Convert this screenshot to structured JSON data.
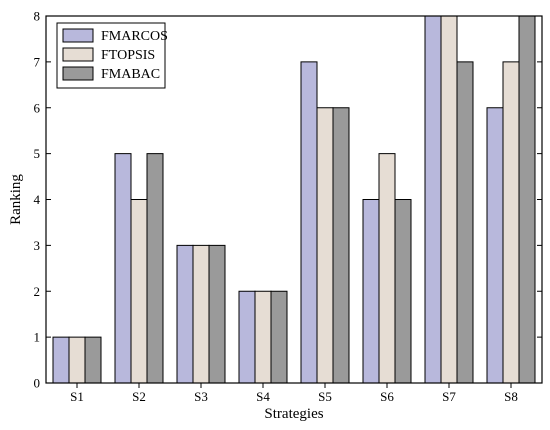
{
  "chart_data": {
    "type": "bar",
    "categories": [
      "S1",
      "S2",
      "S3",
      "S4",
      "S5",
      "S6",
      "S7",
      "S8"
    ],
    "series": [
      {
        "name": "FMARCOS",
        "color": "#b8b8dc",
        "values": [
          1,
          5,
          3,
          2,
          7,
          4,
          8,
          6
        ]
      },
      {
        "name": "FTOPSIS",
        "color": "#e6ddd4",
        "values": [
          1,
          4,
          3,
          2,
          6,
          5,
          8,
          7
        ]
      },
      {
        "name": "FMABAC",
        "color": "#9a9a9a",
        "values": [
          1,
          5,
          3,
          2,
          6,
          4,
          7,
          8
        ]
      }
    ],
    "xlabel": "Strategies",
    "ylabel": "Ranking",
    "ylim": [
      0,
      8
    ],
    "yticks": [
      "0",
      "1",
      "2",
      "3",
      "4",
      "5",
      "6",
      "7",
      "8"
    ],
    "legend_position": "top-left",
    "grid": false
  }
}
